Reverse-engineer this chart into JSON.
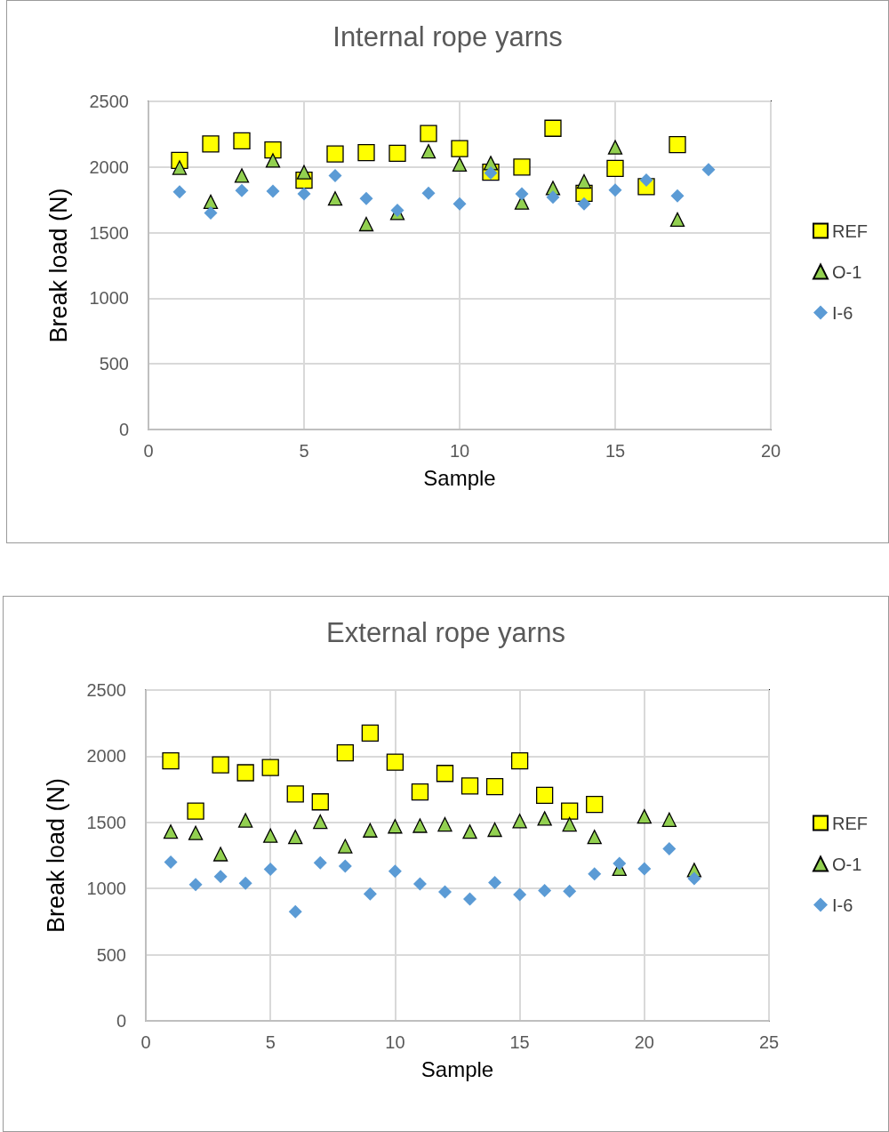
{
  "chart_data": [
    {
      "type": "scatter",
      "title": "Internal rope yarns",
      "xlabel": "Sample",
      "ylabel": "Break load (N)",
      "x": [
        1,
        2,
        3,
        4,
        5,
        6,
        7,
        8,
        9,
        10,
        11,
        12,
        13,
        14,
        15,
        16,
        17,
        18
      ],
      "xlim": [
        0,
        20
      ],
      "xticks": [
        0,
        5,
        10,
        15,
        20
      ],
      "ylim": [
        0,
        2500
      ],
      "yticks": [
        0,
        500,
        1000,
        1500,
        2000,
        2500
      ],
      "grid": true,
      "legend": "right",
      "series": [
        {
          "name": "REF",
          "color": "#ffff00",
          "marker": "square",
          "values": [
            2050,
            2175,
            2200,
            2130,
            1900,
            2100,
            2110,
            2105,
            2255,
            2140,
            1960,
            2000,
            2295,
            1800,
            1990,
            1850,
            2170,
            null
          ]
        },
        {
          "name": "O-1",
          "color": "#92d050",
          "marker": "triangle",
          "values": [
            1995,
            1735,
            1935,
            2050,
            1960,
            1760,
            1565,
            1650,
            2120,
            2020,
            2030,
            1730,
            1840,
            1890,
            2150,
            null,
            1600,
            null
          ]
        },
        {
          "name": "I-6",
          "color": "#5b9bd5",
          "marker": "diamond",
          "values": [
            1810,
            1650,
            1820,
            1815,
            1795,
            1935,
            1760,
            1670,
            1800,
            1720,
            1955,
            1795,
            1770,
            1720,
            1825,
            1900,
            1780,
            1980
          ]
        }
      ]
    },
    {
      "type": "scatter",
      "title": "External rope yarns",
      "xlabel": "Sample",
      "ylabel": "Break load (N)",
      "x": [
        1,
        2,
        3,
        4,
        5,
        6,
        7,
        8,
        9,
        10,
        11,
        12,
        13,
        14,
        15,
        16,
        17,
        18,
        19,
        20,
        21,
        22
      ],
      "xlim": [
        0,
        25
      ],
      "xticks": [
        0,
        5,
        10,
        15,
        20,
        25
      ],
      "ylim": [
        0,
        2500
      ],
      "yticks": [
        0,
        500,
        1000,
        1500,
        2000,
        2500
      ],
      "grid": true,
      "legend": "right",
      "series": [
        {
          "name": "REF",
          "color": "#ffff00",
          "marker": "square",
          "values": [
            1965,
            1585,
            1935,
            1875,
            1915,
            1715,
            1655,
            2025,
            2175,
            1955,
            1730,
            1870,
            1775,
            1770,
            1965,
            1705,
            1585,
            1635,
            null,
            null,
            null,
            null
          ]
        },
        {
          "name": "O-1",
          "color": "#92d050",
          "marker": "triangle",
          "values": [
            1430,
            1420,
            1260,
            1515,
            1400,
            1390,
            1505,
            1320,
            1440,
            1470,
            1475,
            1485,
            1430,
            1445,
            1510,
            1530,
            1485,
            1390,
            1150,
            1545,
            1520,
            1140
          ]
        },
        {
          "name": "I-6",
          "color": "#5b9bd5",
          "marker": "diamond",
          "values": [
            1200,
            1030,
            1090,
            1040,
            1145,
            825,
            1195,
            1170,
            960,
            1130,
            1035,
            975,
            920,
            1045,
            955,
            985,
            980,
            1110,
            1190,
            1150,
            1300,
            1075
          ]
        }
      ]
    }
  ]
}
